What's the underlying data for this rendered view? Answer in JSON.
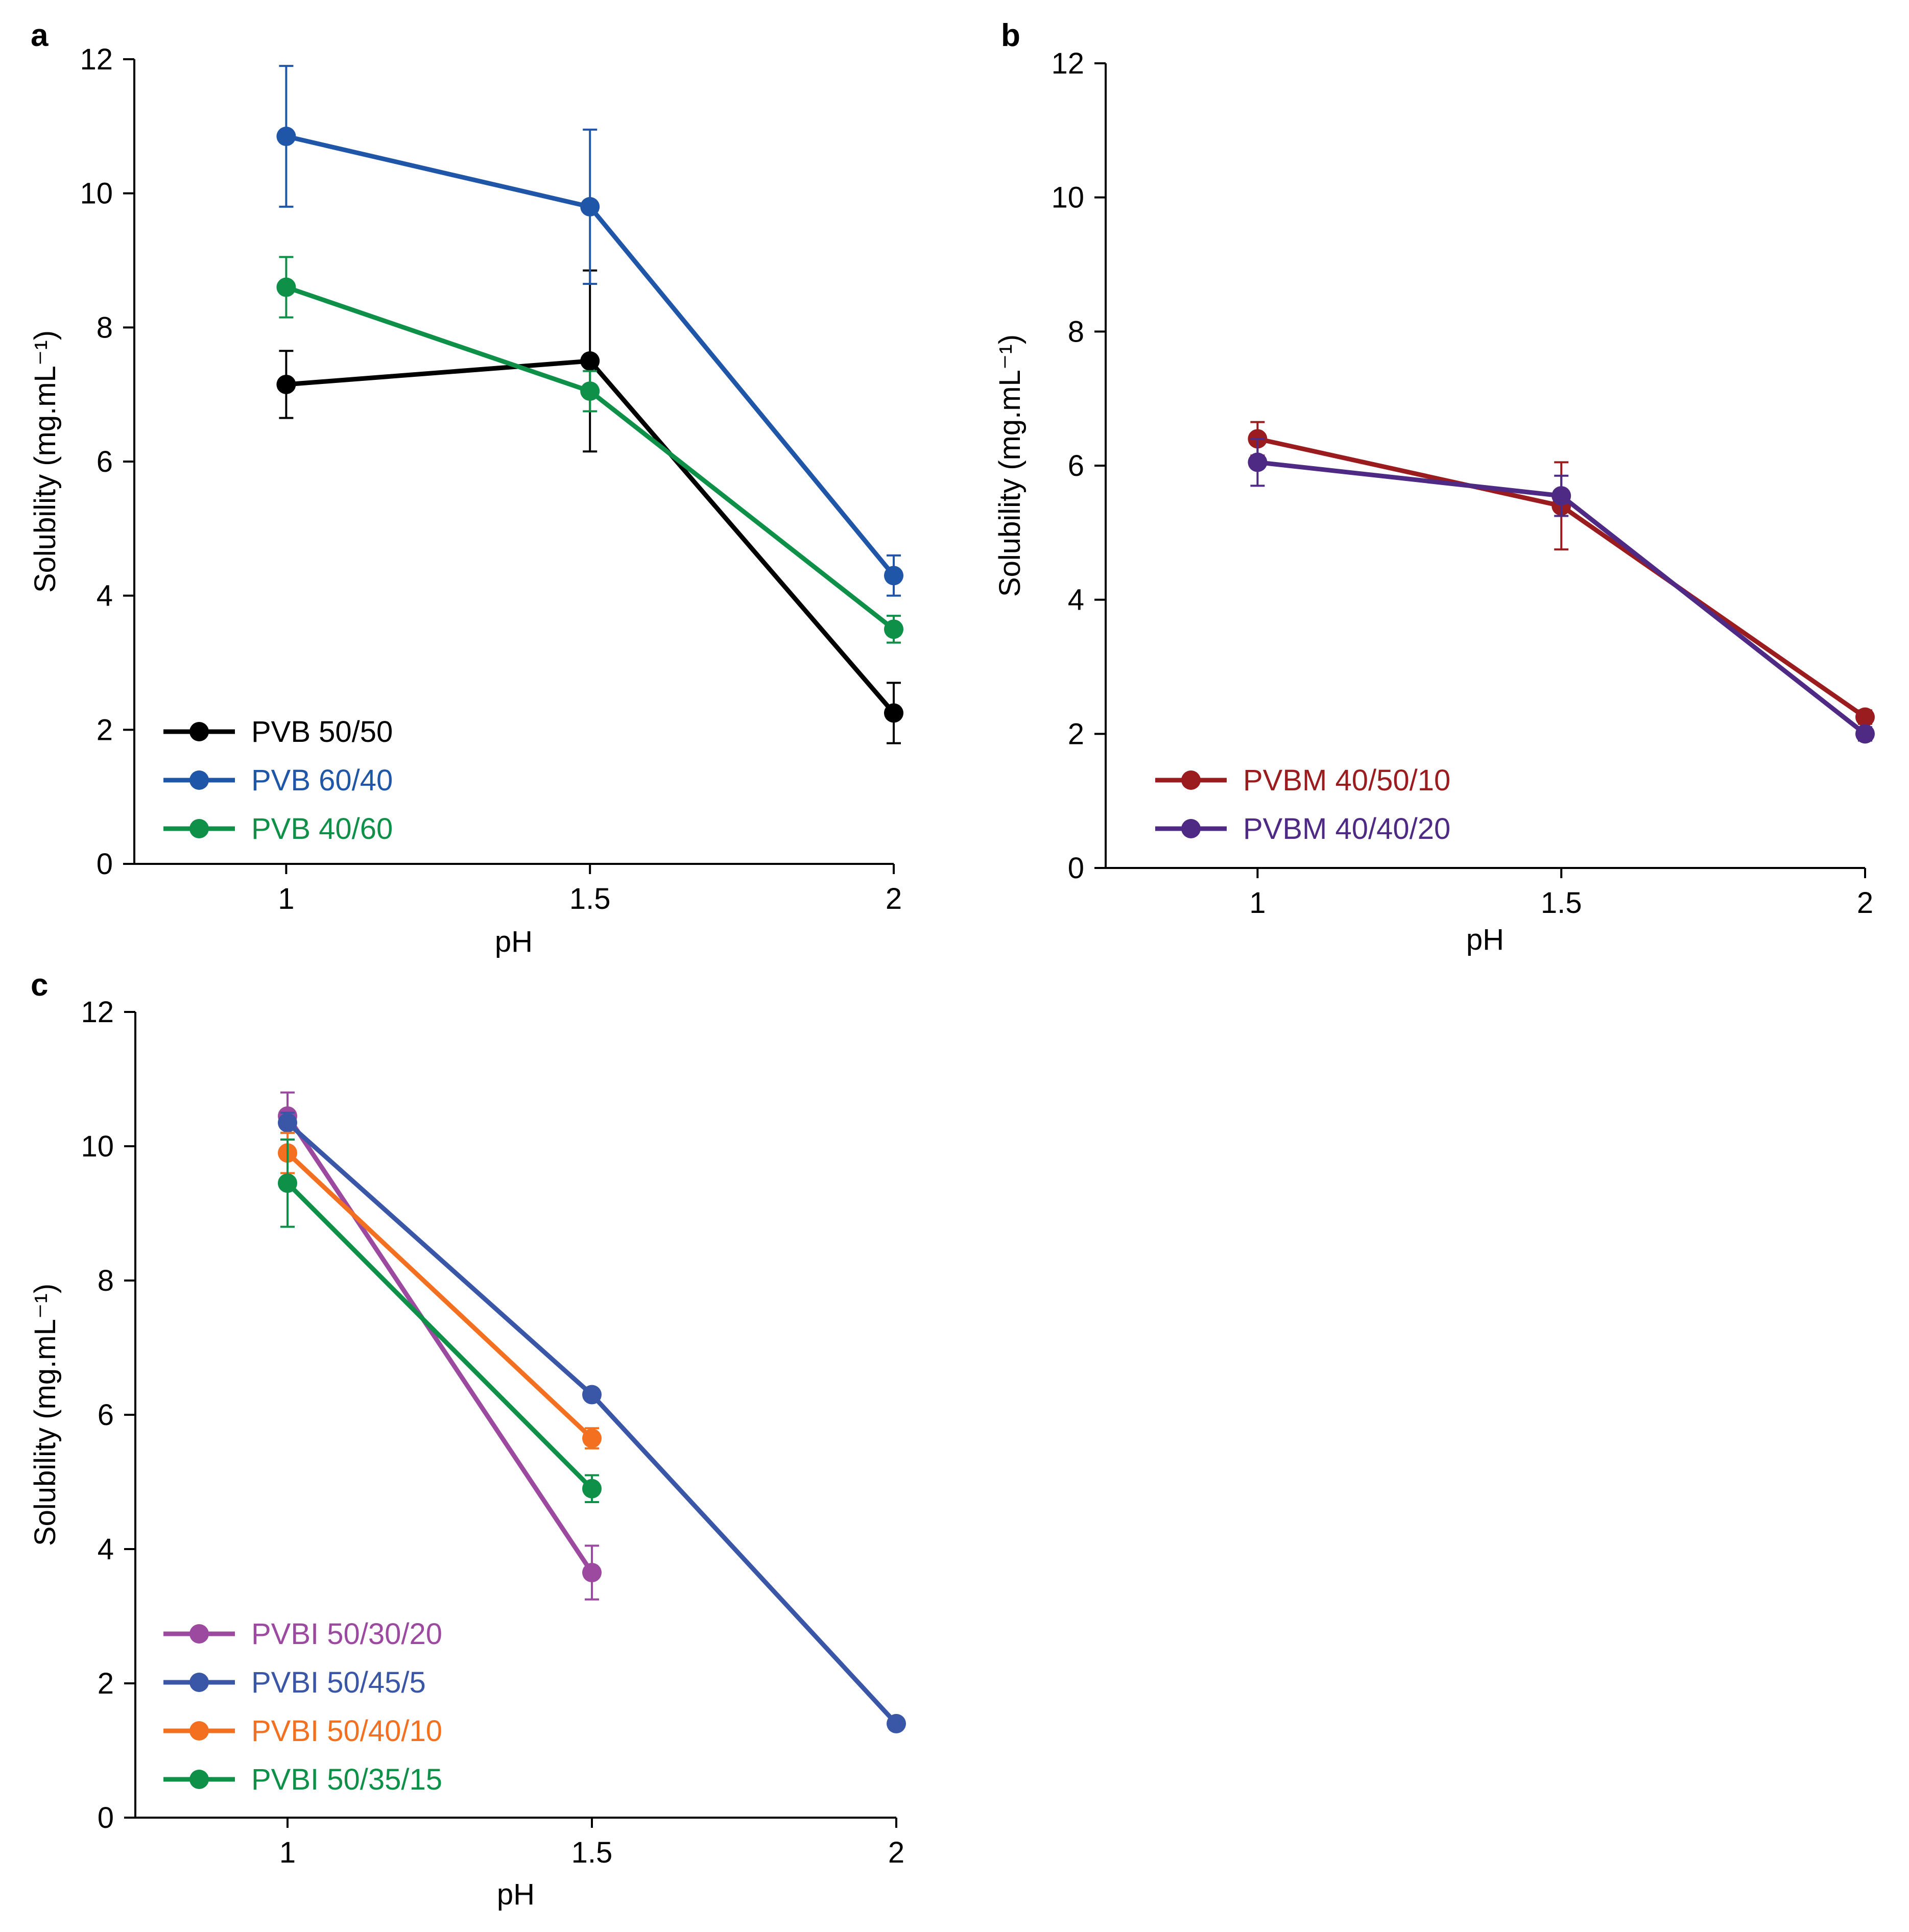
{
  "chart_data": [
    {
      "panel": "a",
      "type": "line",
      "xlabel": "pH",
      "ylabel": "Solubility (mg.mL⁻¹)",
      "x_ticks": [
        "1",
        "1.5",
        "2"
      ],
      "y_ticks": [
        "0",
        "2",
        "4",
        "6",
        "8",
        "10",
        "12"
      ],
      "xlim": [
        0.75,
        2.0
      ],
      "ylim": [
        0,
        12
      ],
      "legend_position": "bottom-left",
      "series": [
        {
          "name": "PVB 50/50",
          "color": "#000000",
          "x": [
            1,
            1.5,
            2
          ],
          "y": [
            7.15,
            7.5,
            2.25
          ],
          "err": [
            0.5,
            1.35,
            0.45
          ]
        },
        {
          "name": "PVB 60/40",
          "color": "#1f56a8",
          "x": [
            1,
            1.5,
            2
          ],
          "y": [
            10.85,
            9.8,
            4.3
          ],
          "err": [
            1.05,
            1.15,
            0.3
          ]
        },
        {
          "name": "PVB 40/60",
          "color": "#0f9048",
          "x": [
            1,
            1.5,
            2
          ],
          "y": [
            8.6,
            7.05,
            3.5
          ],
          "err": [
            0.45,
            0.3,
            0.2
          ]
        }
      ]
    },
    {
      "panel": "b",
      "type": "line",
      "xlabel": "pH",
      "ylabel": "Solubility (mg.mL⁻¹)",
      "x_ticks": [
        "1",
        "1.5",
        "2"
      ],
      "y_ticks": [
        "0",
        "2",
        "4",
        "6",
        "8",
        "10",
        "12"
      ],
      "xlim": [
        0.75,
        2.0
      ],
      "ylim": [
        0,
        12
      ],
      "legend_position": "bottom-left",
      "series": [
        {
          "name": "PVBM 40/50/10",
          "color": "#9b1c1f",
          "x": [
            1,
            1.5,
            2
          ],
          "y": [
            6.4,
            5.4,
            2.25
          ],
          "err": [
            0.25,
            0.65,
            0.1
          ]
        },
        {
          "name": "PVBM 40/40/20",
          "color": "#4e2a84",
          "x": [
            1,
            1.5,
            2
          ],
          "y": [
            6.05,
            5.55,
            2.0
          ],
          "err": [
            0.35,
            0.3,
            0.1
          ]
        }
      ]
    },
    {
      "panel": "c",
      "type": "line",
      "xlabel": "pH",
      "ylabel": "Solubility (mg.mL⁻¹)",
      "x_ticks": [
        "1",
        "1.5",
        "2"
      ],
      "y_ticks": [
        "0",
        "2",
        "4",
        "6",
        "8",
        "10",
        "12"
      ],
      "xlim": [
        0.75,
        2.0
      ],
      "ylim": [
        0,
        12
      ],
      "legend_position": "bottom-left",
      "series": [
        {
          "name": "PVBI 50/30/20",
          "color": "#9b4aa0",
          "x": [
            1,
            1.5
          ],
          "y": [
            10.45,
            3.65
          ],
          "err": [
            0.35,
            0.4
          ]
        },
        {
          "name": "PVBI 50/45/5",
          "color": "#3a56a6",
          "x": [
            1,
            1.5,
            2
          ],
          "y": [
            10.35,
            6.3,
            1.4
          ],
          "err": [
            0.15,
            0.05,
            0.05
          ]
        },
        {
          "name": "PVBI 50/40/10",
          "color": "#f37021",
          "x": [
            1,
            1.5
          ],
          "y": [
            9.9,
            5.65
          ],
          "err": [
            0.3,
            0.15
          ]
        },
        {
          "name": "PVBI 50/35/15",
          "color": "#0f9048",
          "x": [
            1,
            1.5
          ],
          "y": [
            9.45,
            4.9
          ],
          "err": [
            0.65,
            0.2
          ]
        }
      ]
    }
  ]
}
